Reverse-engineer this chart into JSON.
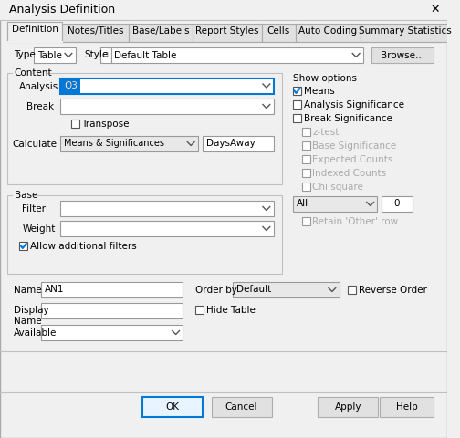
{
  "title": "Analysis Definition",
  "bg_color": "#f0f0f0",
  "dialog_bg": "#f0f0f0",
  "tabs": [
    "Definition",
    "Notes/Titles",
    "Base/Labels",
    "Report Styles",
    "Cells",
    "Auto Coding",
    "Summary Statistics"
  ],
  "active_tab": "Definition",
  "type_label": "Type",
  "type_value": "Table",
  "style_label": "Style",
  "style_value": "Default Table",
  "browse_label": "Browse...",
  "content_label": "Content",
  "analysis_label": "Analysis",
  "analysis_value": "Q3",
  "break_label": "Break",
  "transpose_label": "Transpose",
  "calculate_label": "Calculate",
  "calculate_value": "Means & Significances",
  "calculate_value2": "DaysAway",
  "base_label": "Base",
  "filter_label": "Filter",
  "weight_label": "Weight",
  "allow_filters_label": "Allow additional filters",
  "show_options_label": "Show options",
  "means_label": "Means",
  "analysis_sig_label": "Analysis Significance",
  "break_sig_label": "Break Significance",
  "ztest_label": "z-test",
  "base_sig_label": "Base Significance",
  "expected_counts_label": "Expected Counts",
  "indexed_counts_label": "Indexed Counts",
  "chi_square_label": "Chi square",
  "all_label": "All",
  "all_value": "0",
  "retain_other_label": "Retain 'Other' row",
  "name_label": "Name",
  "name_value": "AN1",
  "order_by_label": "Order by",
  "order_by_value": "Default",
  "reverse_order_label": "Reverse Order",
  "display_name_label": "Display\nName",
  "hide_table_label": "Hide Table",
  "available_label": "Available",
  "ok_label": "OK",
  "cancel_label": "Cancel",
  "apply_label": "Apply",
  "help_label": "Help",
  "means_checked": true,
  "analysis_sig_checked": false,
  "break_sig_checked": false,
  "ztest_checked": false,
  "base_sig_checked": false,
  "expected_counts_checked": false,
  "indexed_counts_checked": false,
  "chi_square_checked": false,
  "transpose_checked": false,
  "allow_filters_checked": true,
  "reverse_order_checked": false,
  "hide_table_checked": false,
  "retain_other_checked": false
}
